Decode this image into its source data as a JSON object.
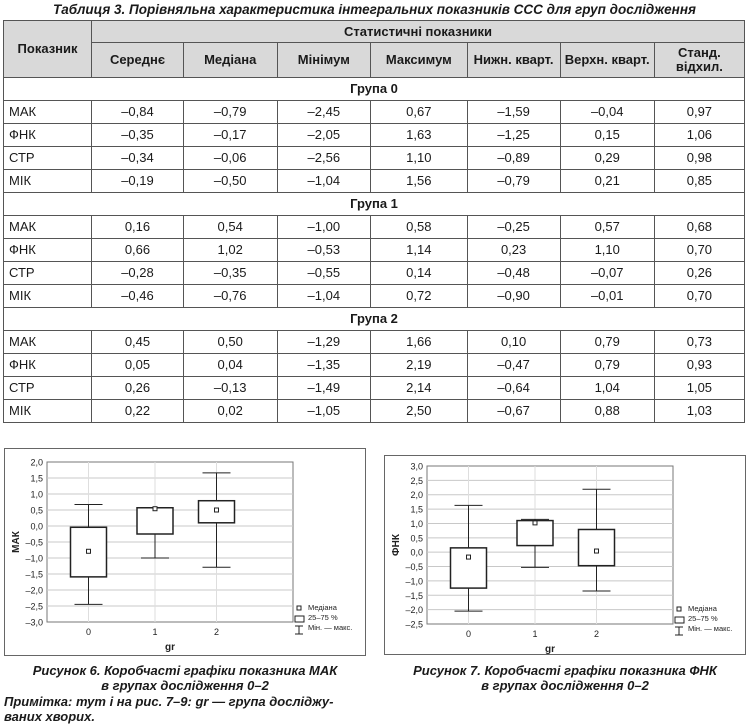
{
  "table_title": "Таблиця 3. Порівняльна характеристика інтегральних показників ССС для груп дослідження",
  "header": {
    "indicator": "Показник",
    "stats_group": "Статистичні показники",
    "cols": [
      "Середнє",
      "Медіана",
      "Мінімум",
      "Максимум",
      "Нижн. кварт.",
      "Верхн. кварт.",
      "Станд. відхил."
    ]
  },
  "groups": [
    {
      "name": "Група 0",
      "rows": [
        {
          "name": "МАК",
          "vals": [
            "–0,84",
            "–0,79",
            "–2,45",
            "0,67",
            "–1,59",
            "–0,04",
            "0,97"
          ]
        },
        {
          "name": "ФНК",
          "vals": [
            "–0,35",
            "–0,17",
            "–2,05",
            "1,63",
            "–1,25",
            "0,15",
            "1,06"
          ]
        },
        {
          "name": "СТР",
          "vals": [
            "–0,34",
            "–0,06",
            "–2,56",
            "1,10",
            "–0,89",
            "0,29",
            "0,98"
          ]
        },
        {
          "name": "МІК",
          "vals": [
            "–0,19",
            "–0,50",
            "–1,04",
            "1,56",
            "–0,79",
            "0,21",
            "0,85"
          ]
        }
      ]
    },
    {
      "name": "Група 1",
      "rows": [
        {
          "name": "МАК",
          "vals": [
            "0,16",
            "0,54",
            "–1,00",
            "0,58",
            "–0,25",
            "0,57",
            "0,68"
          ]
        },
        {
          "name": "ФНК",
          "vals": [
            "0,66",
            "1,02",
            "–0,53",
            "1,14",
            "0,23",
            "1,10",
            "0,70"
          ]
        },
        {
          "name": "СТР",
          "vals": [
            "–0,28",
            "–0,35",
            "–0,55",
            "0,14",
            "–0,48",
            "–0,07",
            "0,26"
          ]
        },
        {
          "name": "МІК",
          "vals": [
            "–0,46",
            "–0,76",
            "–1,04",
            "0,72",
            "–0,90",
            "–0,01",
            "0,70"
          ]
        }
      ]
    },
    {
      "name": "Група 2",
      "rows": [
        {
          "name": "МАК",
          "vals": [
            "0,45",
            "0,50",
            "–1,29",
            "1,66",
            "0,10",
            "0,79",
            "0,73"
          ]
        },
        {
          "name": "ФНК",
          "vals": [
            "0,05",
            "0,04",
            "–1,35",
            "2,19",
            "–0,47",
            "0,79",
            "0,93"
          ]
        },
        {
          "name": "СТР",
          "vals": [
            "0,26",
            "–0,13",
            "–1,49",
            "2,14",
            "–0,64",
            "1,04",
            "1,05"
          ]
        },
        {
          "name": "МІК",
          "vals": [
            "0,22",
            "0,02",
            "–1,05",
            "2,50",
            "–0,67",
            "0,88",
            "1,03"
          ]
        }
      ]
    }
  ],
  "chart_data": [
    {
      "type": "box",
      "ylabel": "МАК",
      "xlabel": "gr",
      "ylim": [
        -3.0,
        2.0
      ],
      "yticks": [
        "2,0",
        "1,5",
        "1,0",
        "0,5",
        "0,0",
        "–0,5",
        "–1,0",
        "–1,5",
        "–2,0",
        "–2,5",
        "–3,0"
      ],
      "categories": [
        "0",
        "1",
        "2"
      ],
      "boxes": [
        {
          "median": -0.79,
          "q1": -1.59,
          "q3": -0.04,
          "min": -2.45,
          "max": 0.67
        },
        {
          "median": 0.54,
          "q1": -0.25,
          "q3": 0.57,
          "min": -1.0,
          "max": 0.58
        },
        {
          "median": 0.5,
          "q1": 0.1,
          "q3": 0.79,
          "min": -1.29,
          "max": 1.66
        }
      ],
      "legend": [
        "Медіана",
        "25–75 %",
        "Мін. — макс."
      ],
      "grid": true,
      "legend_position": "bottom-right"
    },
    {
      "type": "box",
      "ylabel": "ФНК",
      "xlabel": "gr",
      "ylim": [
        -2.5,
        3.0
      ],
      "yticks": [
        "3,0",
        "2,5",
        "2,0",
        "1,5",
        "1,0",
        "0,5",
        "0,0",
        "–0,5",
        "–1,0",
        "–1,5",
        "–2,0",
        "–2,5"
      ],
      "categories": [
        "0",
        "1",
        "2"
      ],
      "boxes": [
        {
          "median": -0.17,
          "q1": -1.25,
          "q3": 0.15,
          "min": -2.05,
          "max": 1.63
        },
        {
          "median": 1.02,
          "q1": 0.23,
          "q3": 1.1,
          "min": -0.53,
          "max": 1.14
        },
        {
          "median": 0.04,
          "q1": -0.47,
          "q3": 0.79,
          "min": -1.35,
          "max": 2.19
        }
      ],
      "legend": [
        "Медіана",
        "25–75 %",
        "Мін. — макс."
      ],
      "grid": true,
      "legend_position": "bottom-right"
    }
  ],
  "fig6_caption_1": "Рисунок 6. Коробчасті графіки показника МАК",
  "fig6_caption_2": "в групах дослідження 0–2",
  "fig7_caption_1": "Рисунок 7. Коробчасті графіки показника ФНК",
  "fig7_caption_2": "в групах дослідження 0–2",
  "note_1": "Примітка: тут і на рис. 7–9: gr — група досліджу-",
  "note_2": "ваних хворих."
}
